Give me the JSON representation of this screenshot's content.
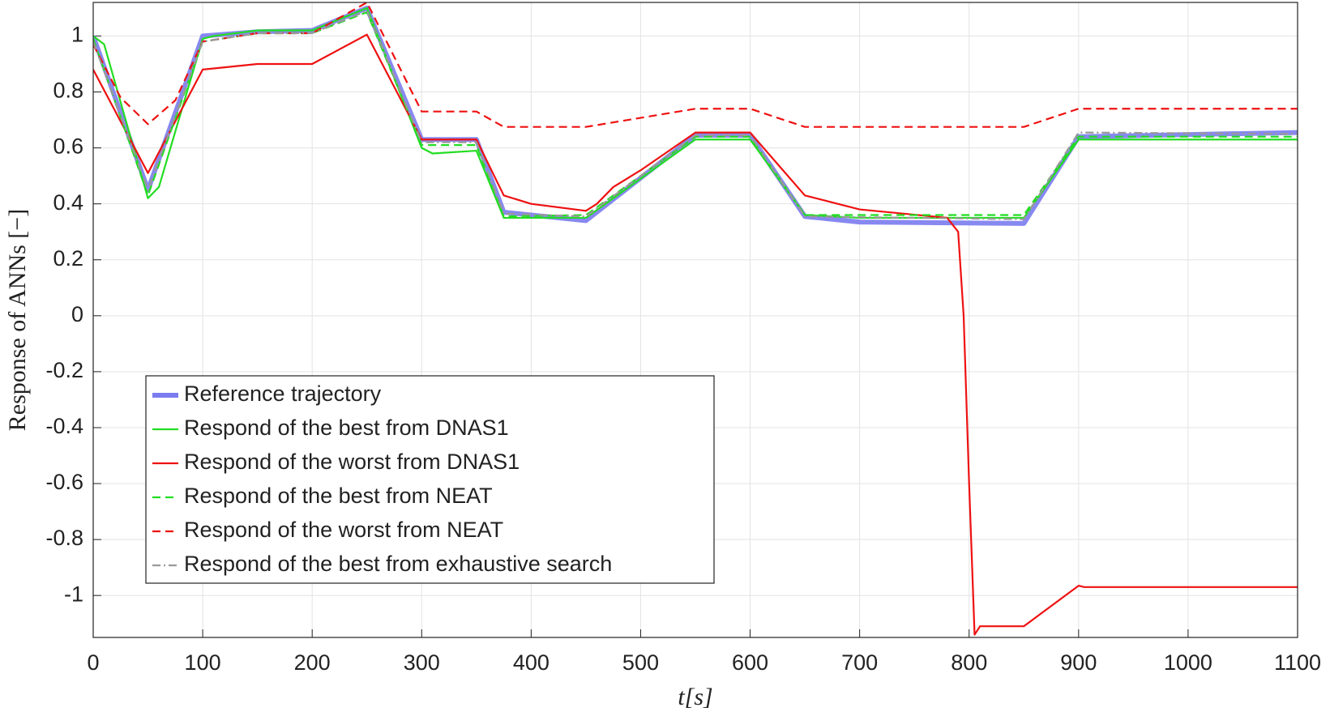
{
  "chart_data": {
    "type": "line",
    "xlabel": "t[s]",
    "ylabel": "Response of ANNs [−]",
    "xlim": [
      0,
      1100
    ],
    "xticks": [
      0,
      100,
      200,
      300,
      400,
      500,
      600,
      700,
      800,
      900,
      1000,
      1100
    ],
    "ylim": [
      -1.15,
      1.12
    ],
    "yticks": [
      -1,
      -0.8,
      -0.6,
      -0.4,
      -0.2,
      0,
      0.2,
      0.4,
      0.6,
      0.8,
      1
    ],
    "grid": true,
    "legend": "lower left",
    "series": [
      {
        "name": "Reference trajectory",
        "color": "#7b7bf0",
        "linestyle": "solid",
        "x": [
          0,
          50,
          100,
          150,
          200,
          250,
          300,
          350,
          375,
          450,
          550,
          600,
          650,
          700,
          850,
          900,
          1100
        ],
        "values": [
          1.0,
          0.45,
          1.0,
          1.015,
          1.02,
          1.1,
          0.63,
          0.63,
          0.37,
          0.34,
          0.645,
          0.645,
          0.355,
          0.335,
          0.33,
          0.64,
          0.655
        ]
      },
      {
        "name": "Respond of the best from DNAS1",
        "color": "#22dd22",
        "linestyle": "solid",
        "x": [
          0,
          10,
          50,
          60,
          100,
          110,
          150,
          200,
          250,
          300,
          310,
          350,
          375,
          450,
          550,
          600,
          650,
          700,
          850,
          900,
          1100
        ],
        "values": [
          1.0,
          0.97,
          0.42,
          0.46,
          0.99,
          1.0,
          1.02,
          1.02,
          1.1,
          0.6,
          0.58,
          0.59,
          0.35,
          0.35,
          0.63,
          0.63,
          0.36,
          0.35,
          0.35,
          0.63,
          0.63
        ]
      },
      {
        "name": "Respond of the worst from DNAS1",
        "color": "#ee1111",
        "linestyle": "solid",
        "x": [
          0,
          50,
          100,
          150,
          200,
          250,
          300,
          350,
          375,
          400,
          450,
          460,
          475,
          500,
          550,
          600,
          650,
          700,
          780,
          790,
          795,
          800,
          805,
          810,
          850,
          900,
          905,
          1100
        ],
        "values": [
          0.88,
          0.51,
          0.88,
          0.9,
          0.9,
          1.005,
          0.63,
          0.63,
          0.43,
          0.4,
          0.375,
          0.4,
          0.46,
          0.52,
          0.655,
          0.655,
          0.43,
          0.38,
          0.35,
          0.3,
          0.0,
          -0.6,
          -1.14,
          -1.11,
          -1.11,
          -0.965,
          -0.97,
          -0.97
        ]
      },
      {
        "name": "Respond of the best from NEAT",
        "color": "#22dd22",
        "linestyle": "dashed",
        "x": [
          0,
          50,
          100,
          150,
          200,
          250,
          300,
          350,
          375,
          450,
          550,
          600,
          650,
          850,
          900,
          1100
        ],
        "values": [
          0.99,
          0.43,
          0.98,
          1.01,
          1.01,
          1.085,
          0.61,
          0.61,
          0.355,
          0.36,
          0.64,
          0.64,
          0.36,
          0.36,
          0.64,
          0.64
        ]
      },
      {
        "name": "Respond of the worst from NEAT",
        "color": "#ee1111",
        "linestyle": "dashed",
        "x": [
          0,
          25,
          50,
          75,
          100,
          150,
          200,
          250,
          300,
          350,
          375,
          450,
          550,
          600,
          650,
          850,
          900,
          1100
        ],
        "values": [
          0.97,
          0.78,
          0.685,
          0.77,
          0.98,
          1.01,
          1.01,
          1.12,
          0.73,
          0.73,
          0.675,
          0.675,
          0.74,
          0.74,
          0.675,
          0.675,
          0.74,
          0.74
        ]
      },
      {
        "name": "Respond of the best from exhaustive search",
        "color": "#999999",
        "linestyle": "dashdot",
        "x": [
          0,
          50,
          100,
          150,
          200,
          250,
          300,
          350,
          375,
          450,
          550,
          600,
          650,
          850,
          900,
          1100
        ],
        "values": [
          0.98,
          0.45,
          0.98,
          1.01,
          1.01,
          1.09,
          0.62,
          0.62,
          0.365,
          0.355,
          0.645,
          0.645,
          0.355,
          0.345,
          0.655,
          0.65
        ]
      }
    ]
  }
}
